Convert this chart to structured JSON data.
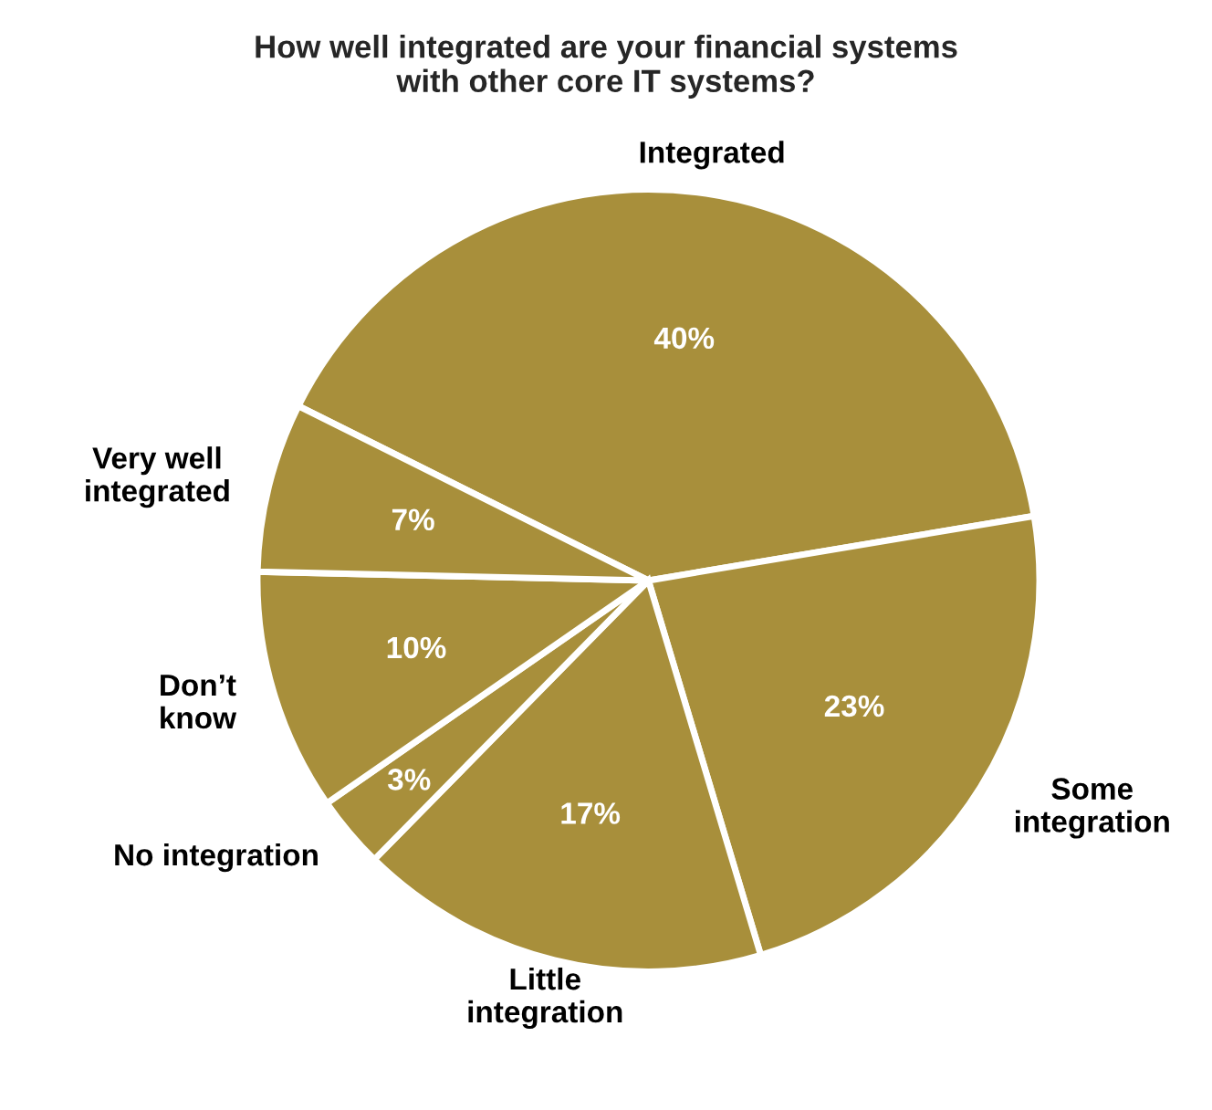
{
  "chart_data": {
    "type": "pie",
    "title": "How well integrated are your financial systems\nwith other core IT systems?",
    "categories": [
      "Integrated",
      "Some\nintegration",
      "Little\nintegration",
      "No integration",
      "Don’t\nknow",
      "Very well\nintegrated"
    ],
    "values": [
      40,
      23,
      17,
      3,
      10,
      7
    ],
    "value_labels": [
      "40%",
      "23%",
      "17%",
      "3%",
      "10%",
      "7%"
    ],
    "colors": [
      "#a88f3b",
      "#a88f3b",
      "#a88f3b",
      "#a88f3b",
      "#a88f3b",
      "#a88f3b"
    ]
  }
}
